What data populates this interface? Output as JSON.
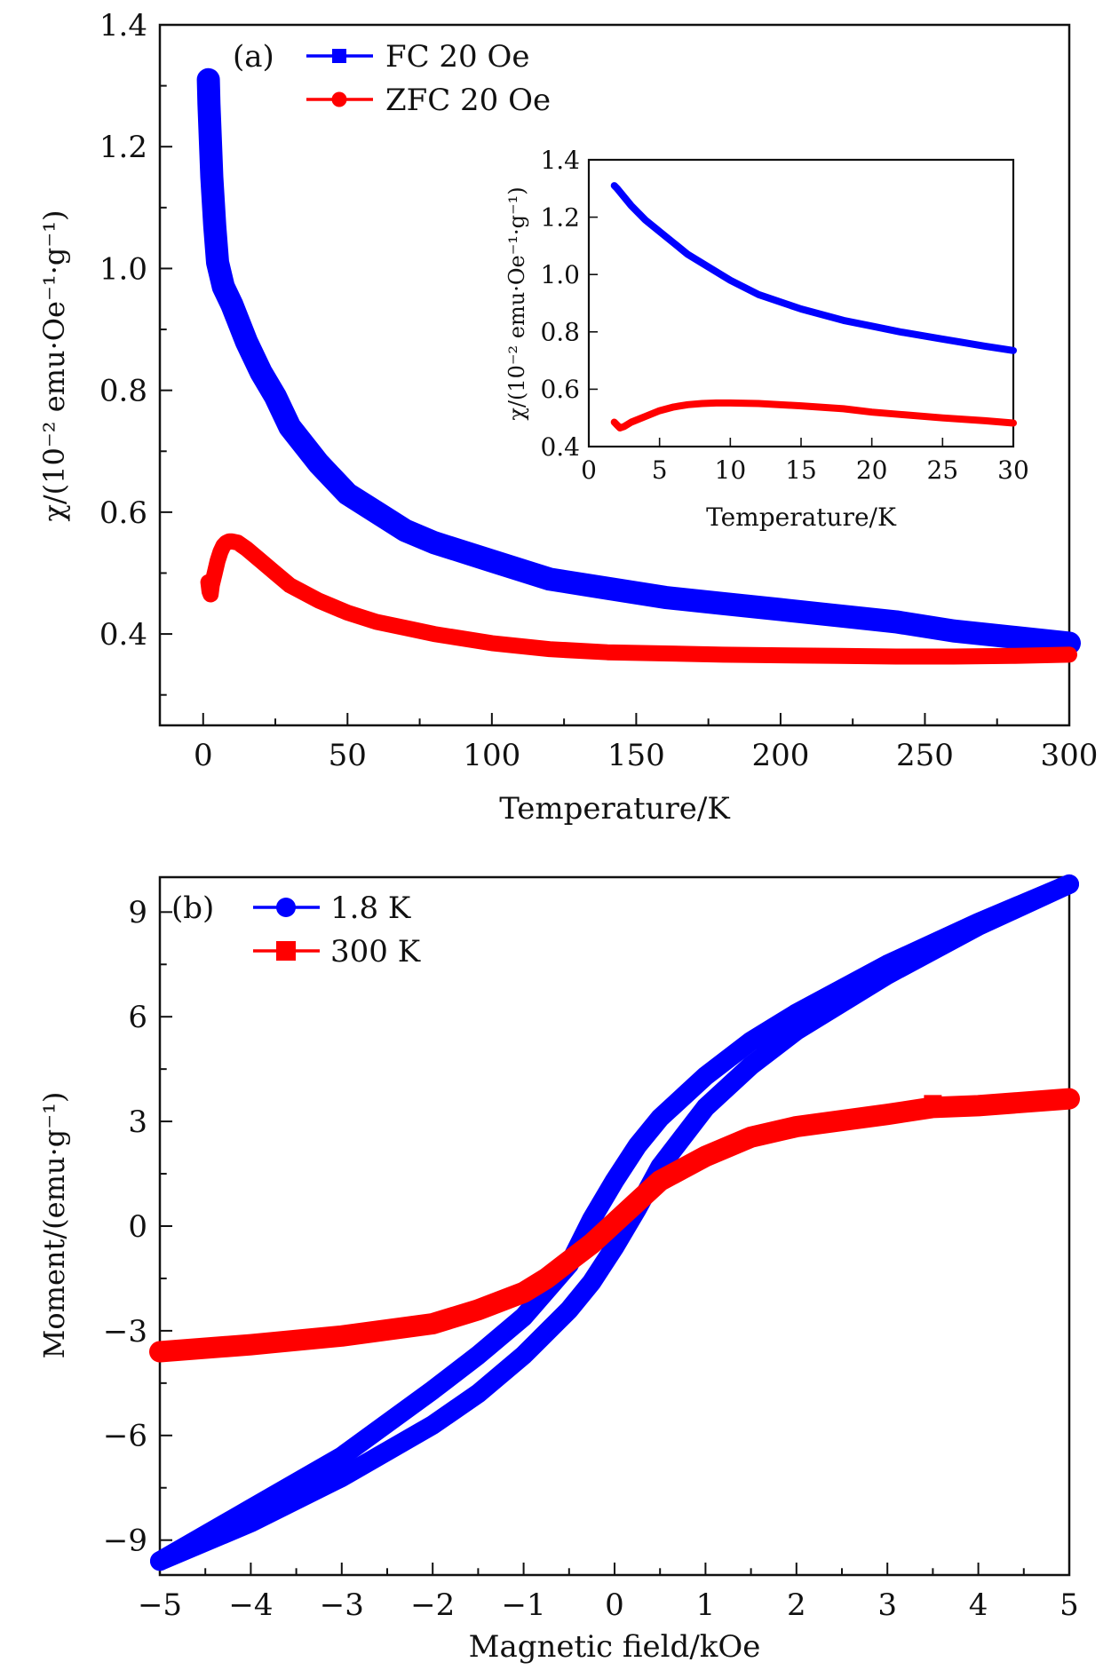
{
  "chart_data": [
    {
      "type": "line",
      "panel_label": "(a)",
      "xlabel": "Temperature/K",
      "ylabel": "χ/(10⁻² emu·Oe⁻¹·g⁻¹)",
      "xlim": [
        -15,
        300
      ],
      "ylim": [
        0.25,
        1.4
      ],
      "xticks": [
        0,
        50,
        100,
        150,
        200,
        250,
        300
      ],
      "xtick_labels": [
        "0",
        "50",
        "100",
        "150",
        "200",
        "250",
        "300"
      ],
      "yticks": [
        0.4,
        0.6,
        0.8,
        1.0,
        1.2,
        1.4
      ],
      "ytick_labels": [
        "0.4",
        "0.6",
        "0.8",
        "1.0",
        "1.2",
        "1.4"
      ],
      "legend_position": "top-left",
      "series": [
        {
          "name": "FC 20 Oe",
          "color": "#0000ff",
          "marker": "square",
          "x": [
            1.8,
            2,
            3,
            4,
            5,
            7,
            10,
            15,
            20,
            25,
            30,
            40,
            50,
            60,
            70,
            80,
            100,
            120,
            140,
            160,
            180,
            200,
            220,
            240,
            260,
            280,
            300
          ],
          "y": [
            1.31,
            1.27,
            1.15,
            1.07,
            1.01,
            0.97,
            0.94,
            0.88,
            0.83,
            0.79,
            0.74,
            0.68,
            0.63,
            0.6,
            0.57,
            0.55,
            0.52,
            0.49,
            0.475,
            0.46,
            0.45,
            0.44,
            0.43,
            0.42,
            0.405,
            0.395,
            0.385
          ]
        },
        {
          "name": "ZFC 20 Oe",
          "color": "#ff0000",
          "marker": "circle",
          "x": [
            1.8,
            2.2,
            2.6,
            3,
            4,
            5,
            6,
            7,
            8,
            9,
            10,
            12,
            15,
            20,
            25,
            30,
            40,
            50,
            60,
            70,
            80,
            100,
            120,
            140,
            160,
            180,
            200,
            220,
            240,
            260,
            280,
            300
          ],
          "y": [
            0.485,
            0.47,
            0.465,
            0.48,
            0.5,
            0.52,
            0.535,
            0.545,
            0.55,
            0.552,
            0.552,
            0.55,
            0.54,
            0.52,
            0.5,
            0.48,
            0.455,
            0.435,
            0.42,
            0.41,
            0.4,
            0.385,
            0.375,
            0.37,
            0.368,
            0.366,
            0.365,
            0.364,
            0.363,
            0.363,
            0.364,
            0.366
          ]
        }
      ],
      "inset": {
        "type": "line",
        "xlabel": "Temperature/K",
        "ylabel": "χ/(10⁻² emu·Oe⁻¹·g⁻¹)",
        "xlim": [
          0,
          30
        ],
        "ylim": [
          0.4,
          1.4
        ],
        "xticks": [
          0,
          5,
          10,
          15,
          20,
          25,
          30
        ],
        "xtick_labels": [
          "0",
          "5",
          "10",
          "15",
          "20",
          "25",
          "30"
        ],
        "yticks": [
          0.4,
          0.6,
          0.8,
          1.0,
          1.2,
          1.4
        ],
        "ytick_labels": [
          "0.4",
          "0.6",
          "0.8",
          "1.0",
          "1.2",
          "1.4"
        ],
        "series": [
          {
            "name": "FC 20 Oe",
            "color": "#0000ff",
            "x": [
              1.8,
              2,
              3,
              4,
              5,
              6,
              7,
              8,
              10,
              12,
              15,
              18,
              20,
              22,
              25,
              28,
              30
            ],
            "y": [
              1.31,
              1.3,
              1.24,
              1.19,
              1.15,
              1.11,
              1.07,
              1.04,
              0.98,
              0.93,
              0.88,
              0.84,
              0.82,
              0.8,
              0.775,
              0.75,
              0.735
            ]
          },
          {
            "name": "ZFC 20 Oe",
            "color": "#ff0000",
            "x": [
              1.8,
              2.0,
              2.2,
              2.5,
              3,
              4,
              5,
              6,
              7,
              8,
              9,
              10,
              12,
              15,
              18,
              20,
              22,
              25,
              28,
              30
            ],
            "y": [
              0.485,
              0.475,
              0.465,
              0.47,
              0.485,
              0.505,
              0.525,
              0.538,
              0.546,
              0.55,
              0.552,
              0.552,
              0.55,
              0.542,
              0.532,
              0.52,
              0.512,
              0.5,
              0.49,
              0.482
            ]
          }
        ]
      }
    },
    {
      "type": "line",
      "panel_label": "(b)",
      "xlabel": "Magnetic field/kOe",
      "ylabel": "Moment/(emu·g⁻¹)",
      "xlim": [
        -5,
        5
      ],
      "ylim": [
        -10,
        10
      ],
      "xticks": [
        -5,
        -4,
        -3,
        -2,
        -1,
        0,
        1,
        2,
        3,
        4,
        5
      ],
      "xtick_labels": [
        "−5",
        "−4",
        "−3",
        "−2",
        "−1",
        "0",
        "1",
        "2",
        "3",
        "4",
        "5"
      ],
      "yticks": [
        -9,
        -6,
        -3,
        0,
        3,
        6,
        9
      ],
      "ytick_labels": [
        "−9",
        "−6",
        "−3",
        "0",
        "3",
        "6",
        "9"
      ],
      "legend_position": "top-left",
      "series": [
        {
          "name": "1.8 K",
          "color": "#0000ff",
          "marker": "circle",
          "branch_descending": {
            "x": [
              5,
              4,
              3,
              2,
              1.5,
              1,
              0.5,
              0.25,
              0,
              -0.25,
              -0.5,
              -1,
              -1.5,
              -2,
              -3,
              -4,
              -5
            ],
            "y": [
              9.8,
              8.7,
              7.5,
              6.1,
              5.3,
              4.3,
              3.1,
              2.3,
              1.3,
              0.2,
              -1.1,
              -2.6,
              -3.7,
              -4.7,
              -6.6,
              -8.1,
              -9.6
            ]
          },
          "branch_ascending": {
            "x": [
              -5,
              -4,
              -3,
              -2,
              -1.5,
              -1,
              -0.5,
              -0.25,
              0,
              0.25,
              0.5,
              1,
              1.5,
              2,
              3,
              4,
              5
            ],
            "y": [
              -9.6,
              -8.5,
              -7.2,
              -5.7,
              -4.8,
              -3.7,
              -2.4,
              -1.6,
              -0.6,
              0.5,
              1.7,
              3.4,
              4.6,
              5.6,
              7.2,
              8.6,
              9.8
            ]
          }
        },
        {
          "name": "300 K",
          "color": "#ff0000",
          "marker": "square",
          "x": [
            -5,
            -4,
            -3,
            -2,
            -1.5,
            -1,
            -0.75,
            -0.5,
            -0.25,
            0,
            0.25,
            0.5,
            0.75,
            1,
            1.5,
            2,
            3,
            3.5,
            4,
            5
          ],
          "y": [
            -3.6,
            -3.4,
            -3.15,
            -2.8,
            -2.4,
            -1.9,
            -1.5,
            -1.0,
            -0.5,
            0.1,
            0.7,
            1.3,
            1.65,
            2.0,
            2.55,
            2.85,
            3.2,
            3.4,
            3.45,
            3.65
          ]
        }
      ]
    }
  ]
}
